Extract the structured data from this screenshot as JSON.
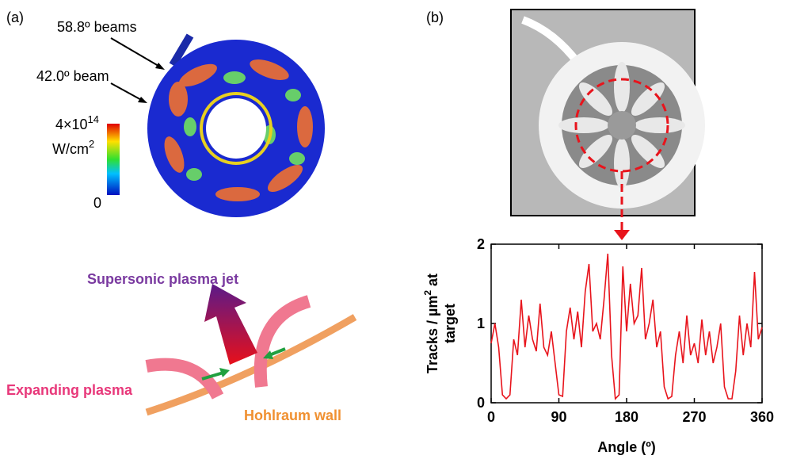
{
  "panels": {
    "a_label": "(a)",
    "b_label": "(b)",
    "beam1": "58.8º beams",
    "beam2": "42.0º beam",
    "cbar_top": "4×10",
    "cbar_top_sup": "14",
    "cbar_unit": "W/cm",
    "cbar_unit_sup": "2",
    "cbar_zero": "0",
    "jet": "Supersonic plasma jet",
    "expanding": "Expanding plasma",
    "wall": "Hohlraum wall"
  },
  "chart_data": {
    "type": "line",
    "ylabel_main": "Tracks / µm",
    "ylabel_sup": "2",
    "ylabel_tail": " at",
    "ylabel_line2": "target",
    "xlabel": "Angle (º)",
    "x": [
      0,
      5,
      10,
      15,
      20,
      25,
      30,
      35,
      40,
      45,
      50,
      55,
      60,
      65,
      70,
      75,
      80,
      85,
      90,
      95,
      100,
      105,
      110,
      115,
      120,
      125,
      130,
      135,
      140,
      145,
      150,
      155,
      160,
      165,
      170,
      175,
      180,
      185,
      190,
      195,
      200,
      205,
      210,
      215,
      220,
      225,
      230,
      235,
      240,
      245,
      250,
      255,
      260,
      265,
      270,
      275,
      280,
      285,
      290,
      295,
      300,
      305,
      310,
      315,
      320,
      325,
      330,
      335,
      340,
      345,
      350,
      355,
      360
    ],
    "values": [
      0.75,
      1.0,
      0.7,
      0.1,
      0.05,
      0.1,
      0.8,
      0.6,
      1.3,
      0.7,
      1.1,
      0.8,
      0.65,
      1.25,
      0.7,
      0.6,
      0.9,
      0.5,
      0.1,
      0.08,
      0.9,
      1.2,
      0.8,
      1.15,
      0.7,
      1.4,
      1.75,
      0.9,
      1.0,
      0.8,
      1.3,
      1.88,
      0.6,
      0.05,
      0.1,
      1.72,
      0.9,
      1.5,
      1.0,
      1.1,
      1.7,
      0.8,
      1.0,
      1.3,
      0.7,
      0.9,
      0.2,
      0.05,
      0.08,
      0.6,
      0.9,
      0.5,
      1.1,
      0.6,
      0.75,
      0.5,
      1.05,
      0.6,
      0.9,
      0.5,
      0.7,
      1.0,
      0.2,
      0.05,
      0.05,
      0.4,
      1.1,
      0.6,
      1.0,
      0.7,
      1.65,
      0.8,
      0.95
    ],
    "color": "#e8141c",
    "xlim": [
      0,
      360
    ],
    "xticks": [
      0,
      90,
      180,
      270,
      360
    ],
    "ylim": [
      0,
      2
    ],
    "yticks": [
      0,
      1,
      2
    ]
  }
}
